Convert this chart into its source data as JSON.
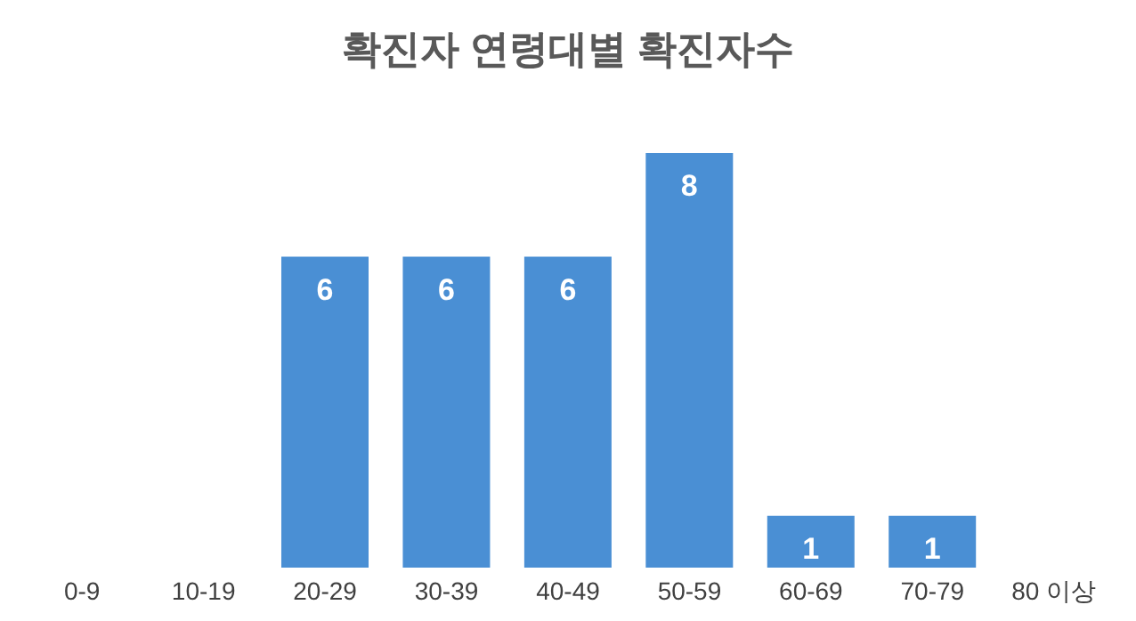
{
  "chart_data": {
    "type": "bar",
    "title": "확진자 연령대별 확진자수",
    "categories": [
      "0-9",
      "10-19",
      "20-29",
      "30-39",
      "40-49",
      "50-59",
      "60-69",
      "70-79",
      "80 이상"
    ],
    "values": [
      0,
      0,
      6,
      6,
      6,
      8,
      1,
      1,
      0
    ],
    "value_labels": [
      null,
      null,
      "6",
      "6",
      "6",
      "8",
      "1",
      "1",
      null
    ],
    "color": "#4a8fd4",
    "grid": false
  }
}
